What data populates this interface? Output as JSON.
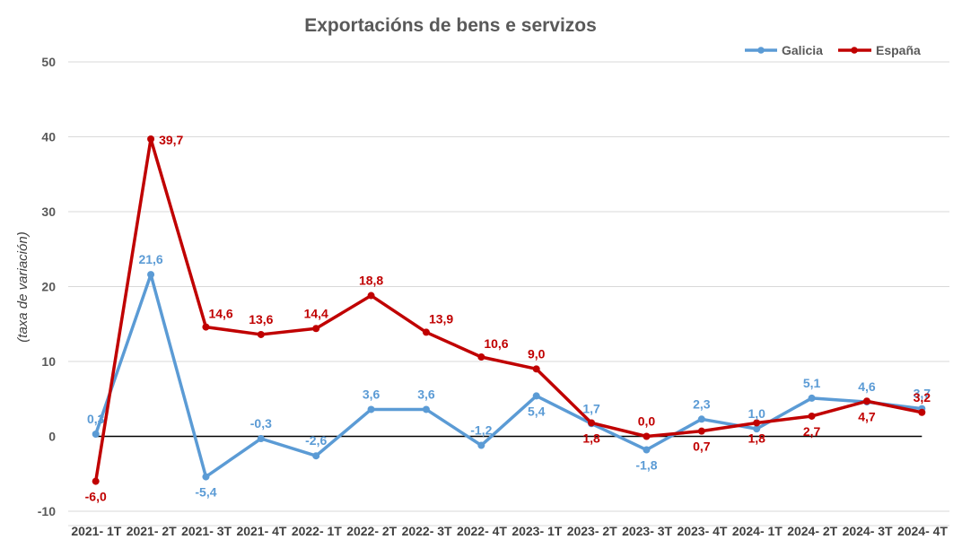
{
  "chart_data": {
    "type": "line",
    "title": "Exportacións de bens e servizos",
    "ylabel": "(taxa de variación)",
    "xlabel": "",
    "ylim": [
      -10,
      50
    ],
    "yticks": [
      -10,
      0,
      10,
      20,
      30,
      40,
      50
    ],
    "grid": true,
    "legend": "top-right",
    "categories": [
      "2021- 1T",
      "2021- 2T",
      "2021- 3T",
      "2021- 4T",
      "2022- 1T",
      "2022- 2T",
      "2022- 3T",
      "2022- 4T",
      "2023- 1T",
      "2023- 2T",
      "2023- 3T",
      "2023- 4T",
      "2024- 1T",
      "2024- 2T",
      "2024- 3T",
      "2024- 4T"
    ],
    "series": [
      {
        "name": "Galicia",
        "color": "#5b9bd5",
        "values": [
          0.3,
          21.6,
          -5.4,
          -0.3,
          -2.6,
          3.6,
          3.6,
          -1.2,
          5.4,
          1.7,
          -1.8,
          2.3,
          1.0,
          5.1,
          4.6,
          3.7
        ],
        "labels": [
          "0,3",
          "21,6",
          "-5,4",
          "-0,3",
          "-2,6",
          "3,6",
          "3,6",
          "-1,2",
          "5,4",
          "1,7",
          "-1,8",
          "2,3",
          "1,0",
          "5,1",
          "4,6",
          "3,7"
        ],
        "label_pos": [
          "above",
          "above",
          "below",
          "above",
          "above",
          "above",
          "above",
          "above",
          "below",
          "above",
          "below",
          "above",
          "above",
          "above",
          "above",
          "above"
        ]
      },
      {
        "name": "España",
        "color": "#c00000",
        "values": [
          -6.0,
          39.7,
          14.6,
          13.6,
          14.4,
          18.8,
          13.9,
          10.6,
          9.0,
          1.8,
          0.0,
          0.7,
          1.8,
          2.7,
          4.7,
          3.2
        ],
        "labels": [
          "-6,0",
          "39,7",
          "14,6",
          "13,6",
          "14,4",
          "18,8",
          "13,9",
          "10,6",
          "9,0",
          "1,8",
          "0,0",
          "0,7",
          "1,8",
          "2,7",
          "4,7",
          "3,2"
        ],
        "label_pos": [
          "below",
          "right",
          "above-right",
          "above",
          "above",
          "above",
          "above-right",
          "above-right",
          "above",
          "below",
          "above",
          "below",
          "below",
          "below",
          "below",
          "above"
        ]
      }
    ]
  }
}
